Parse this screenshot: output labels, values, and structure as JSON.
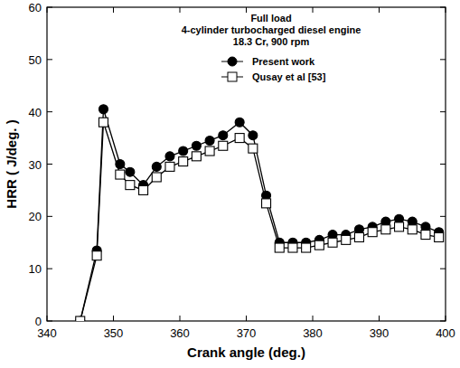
{
  "chart_data": {
    "type": "line",
    "title": [
      "Full load",
      "4-cylinder turbocharged diesel engine",
      "18.3 Cr, 900 rpm"
    ],
    "x_label": "Crank angle (deg.)",
    "y_label": "HRR ( J/deg. )",
    "x": [
      345,
      347.5,
      348.5,
      351,
      352.5,
      354.5,
      356.5,
      358.5,
      360.5,
      362.5,
      364.5,
      366.5,
      369,
      371,
      373,
      375,
      377,
      379,
      381,
      383,
      385,
      387,
      389,
      391,
      393,
      395,
      397,
      399
    ],
    "series": [
      {
        "name": "Present work",
        "color": "#000000",
        "marker": "circle",
        "values": [
          0,
          13.5,
          40.5,
          30,
          28.5,
          26,
          29.5,
          31.5,
          32.5,
          33.5,
          34.5,
          35.5,
          38,
          35.5,
          24,
          15,
          15,
          15,
          15.5,
          16.5,
          16.5,
          17.5,
          18,
          19,
          19.5,
          19,
          18,
          17
        ]
      },
      {
        "name": "Qusay et al  [53]",
        "color": "#000000",
        "marker": "square",
        "values": [
          0,
          12.5,
          38,
          28,
          26,
          25,
          27.5,
          29.5,
          30.5,
          31.5,
          32.5,
          33.5,
          35,
          33,
          22.5,
          14,
          14,
          14,
          14.5,
          15,
          15.5,
          16,
          17,
          17.5,
          18,
          17.5,
          16.5,
          16
        ]
      }
    ],
    "xlim": [
      340,
      400
    ],
    "xticks": [
      340,
      350,
      360,
      370,
      380,
      390,
      400
    ],
    "ylim": [
      0,
      60
    ],
    "yticks": [
      0,
      10,
      20,
      30,
      40,
      50,
      60
    ],
    "legend": "upper right",
    "grid": false
  }
}
